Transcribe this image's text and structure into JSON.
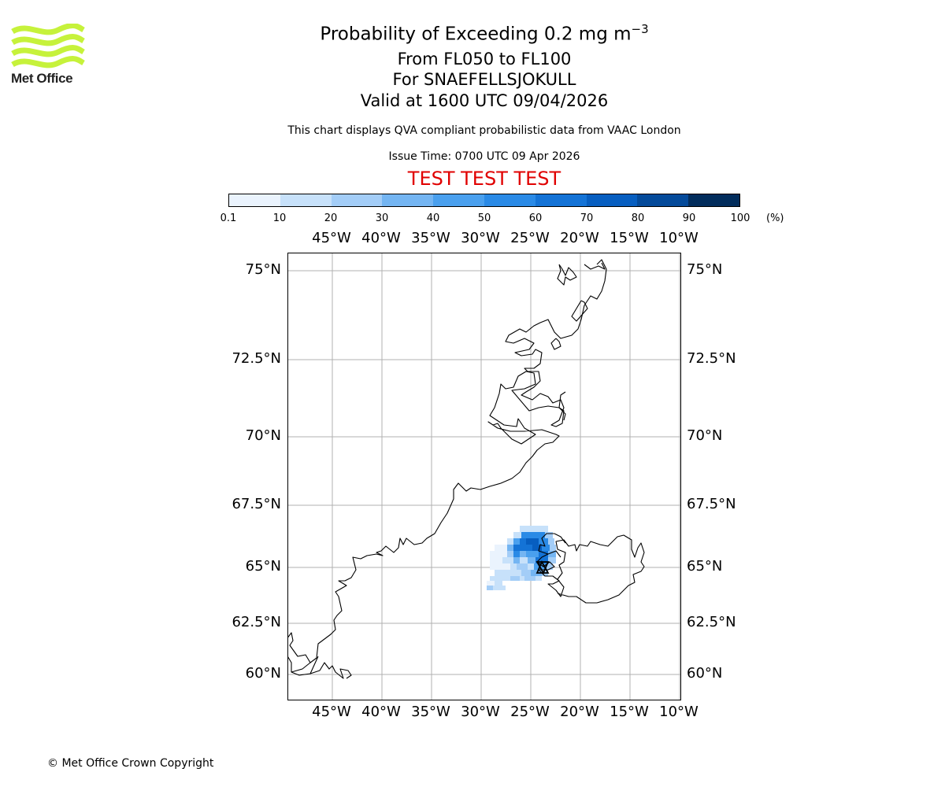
{
  "logo": {
    "text": "Met Office",
    "color": "#c6f23b"
  },
  "header": {
    "title_main": "Probability of Exceeding 0.2 mg m",
    "title_sup": "−3",
    "level": "From FL050 to FL100",
    "volcano": "For SNAEFELLSJOKULL",
    "valid": "Valid at 1600 UTC 09/04/2026",
    "subtitle": "This chart displays QVA compliant probabilistic data from VAAC London",
    "issue_time": "Issue Time: 0700 UTC 09 Apr 2026",
    "test_banner": "TEST TEST TEST",
    "test_color": "#e00000"
  },
  "colorbar": {
    "ticks": [
      "0.1",
      "10",
      "20",
      "30",
      "40",
      "50",
      "60",
      "70",
      "80",
      "90",
      "100"
    ],
    "unit": "(%)",
    "colors": [
      "#eaf3fd",
      "#c7e1fa",
      "#a3cdf7",
      "#74b5f2",
      "#4aa0ee",
      "#2a8ae6",
      "#1473d6",
      "#075ec0",
      "#044a9a",
      "#022d5c"
    ]
  },
  "map": {
    "lon_labels": [
      "45°W",
      "40°W",
      "35°W",
      "30°W",
      "25°W",
      "20°W",
      "15°W",
      "10°W"
    ],
    "lat_labels": [
      "75°N",
      "72.5°N",
      "70°N",
      "67.5°N",
      "65°N",
      "62.5°N",
      "60°N"
    ],
    "gridline_color": "#b0b0b0",
    "coast_color": "#000000",
    "volcano_marker": "triangle-icon"
  },
  "footer": {
    "copyright": "© Met Office Crown Copyright"
  }
}
